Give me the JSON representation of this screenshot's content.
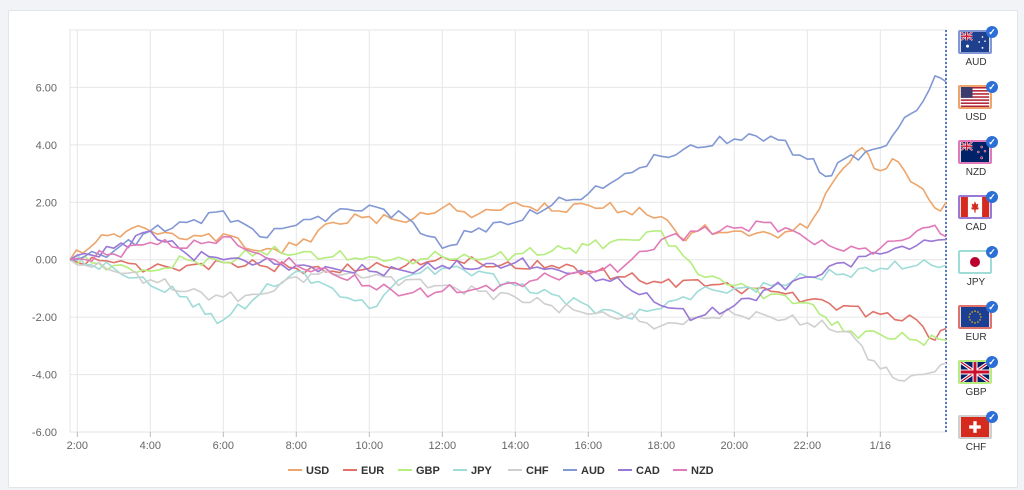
{
  "chart_data": {
    "type": "line",
    "ylim": [
      -6,
      8
    ],
    "y_ticks": [
      "6.00",
      "4.00",
      "2.00",
      "0.00",
      "-2.00",
      "-4.00",
      "-6.00"
    ],
    "y_tick_values": [
      6,
      4,
      2,
      0,
      -2,
      -4,
      -6
    ],
    "x_ticks": [
      "2:00",
      "4:00",
      "6:00",
      "8:00",
      "10:00",
      "12:00",
      "14:00",
      "16:00",
      "18:00",
      "20:00",
      "22:00",
      "1/16"
    ],
    "x_tick_values": [
      2,
      4,
      6,
      8,
      10,
      12,
      14,
      16,
      18,
      20,
      22,
      24
    ],
    "xlim": [
      1.8,
      25.8
    ],
    "grid": true,
    "legend_position": "bottom-center",
    "series": [
      {
        "name": "USD",
        "color": "#eda56b",
        "x": [
          1.8,
          2.5,
          3,
          3.5,
          4,
          5,
          6,
          7,
          8,
          9,
          10,
          11,
          12,
          13,
          14,
          15,
          16,
          17,
          18,
          18.5,
          19,
          20,
          21,
          22,
          22.5,
          23,
          23.5,
          24,
          24.5,
          25,
          25.5,
          25.8
        ],
        "y": [
          0,
          0.6,
          0.9,
          1.1,
          1.0,
          0.7,
          0.9,
          0.3,
          0.5,
          1.3,
          1.5,
          1.3,
          1.8,
          1.6,
          2.0,
          1.7,
          1.9,
          1.7,
          1.5,
          0.8,
          1.0,
          1.0,
          0.9,
          1.1,
          2.3,
          3.2,
          3.9,
          3.1,
          3.4,
          2.6,
          1.8,
          2.0
        ]
      },
      {
        "name": "EUR",
        "color": "#e07269",
        "x": [
          1.8,
          3,
          4,
          5,
          6,
          7,
          8,
          9,
          10,
          11,
          12,
          13,
          14,
          15,
          16,
          17,
          18,
          19,
          20,
          21,
          22,
          23,
          24,
          25,
          25.5,
          25.8
        ],
        "y": [
          0,
          -0.1,
          -0.3,
          -0.2,
          -0.1,
          -0.2,
          -0.3,
          -0.4,
          -0.3,
          -0.2,
          0.1,
          -0.1,
          -0.3,
          -0.2,
          -0.4,
          -0.6,
          -0.8,
          -0.7,
          -1.0,
          -1.1,
          -1.4,
          -1.6,
          -1.9,
          -2.1,
          -2.8,
          -2.4
        ]
      },
      {
        "name": "GBP",
        "color": "#b5ed7e",
        "x": [
          1.8,
          3,
          4,
          5,
          6,
          7,
          8,
          9,
          10,
          11,
          12,
          13,
          14,
          15,
          15.5,
          16,
          17,
          18,
          19,
          20,
          21,
          22,
          22.5,
          23,
          24,
          25,
          25.8
        ],
        "y": [
          0,
          -0.2,
          -0.4,
          0.0,
          -0.1,
          0.3,
          0.2,
          0.1,
          0.1,
          0.0,
          0.1,
          0.0,
          0.2,
          0.3,
          0.4,
          0.5,
          0.7,
          1.0,
          -0.5,
          -0.9,
          -1.2,
          -1.5,
          -2.0,
          -2.5,
          -2.6,
          -2.8,
          -2.8
        ]
      },
      {
        "name": "JPY",
        "color": "#9fdcd8",
        "x": [
          1.8,
          3,
          4,
          5,
          5.5,
          6,
          7,
          8,
          9,
          10,
          11,
          12,
          13,
          14,
          15,
          16,
          17,
          18,
          19,
          20,
          21,
          22,
          23,
          24,
          25,
          25.8
        ],
        "y": [
          0,
          -0.3,
          -0.9,
          -1.3,
          -1.9,
          -2.1,
          -1.2,
          -0.4,
          -1.0,
          -1.7,
          -0.6,
          -0.3,
          -0.4,
          -0.9,
          -1.2,
          -1.6,
          -2.0,
          -1.7,
          -1.1,
          -1.0,
          -0.9,
          -0.6,
          -0.5,
          -0.3,
          -0.2,
          -0.2
        ]
      },
      {
        "name": "CHF",
        "color": "#cfcfcf",
        "x": [
          1.8,
          3,
          4,
          5,
          6,
          7,
          8,
          9,
          10,
          11,
          12,
          13,
          14,
          15,
          16,
          17,
          18,
          19,
          20,
          21,
          22,
          23,
          23.5,
          24,
          24.5,
          25,
          25.5,
          25.8
        ],
        "y": [
          0,
          -0.4,
          -0.7,
          -1.1,
          -1.3,
          -1.2,
          -0.6,
          -0.5,
          -0.6,
          -0.7,
          -0.9,
          -1.1,
          -1.3,
          -1.6,
          -1.9,
          -2.0,
          -2.3,
          -2.0,
          -1.9,
          -2.0,
          -2.2,
          -2.5,
          -3.0,
          -3.8,
          -4.2,
          -4.0,
          -3.9,
          -3.6
        ]
      },
      {
        "name": "AUD",
        "color": "#8298d4",
        "x": [
          1.8,
          3,
          4,
          5,
          6,
          7,
          8,
          9,
          10,
          11,
          12,
          13,
          14,
          15,
          16,
          17,
          18,
          19,
          20,
          21,
          22,
          22.5,
          23,
          24,
          24.5,
          25,
          25.5,
          25.8
        ],
        "y": [
          0,
          0.3,
          1.0,
          1.3,
          1.7,
          0.8,
          1.2,
          1.6,
          1.9,
          1.5,
          0.4,
          1.1,
          1.3,
          1.9,
          2.3,
          3.0,
          3.6,
          3.9,
          4.2,
          4.3,
          3.5,
          2.9,
          3.5,
          3.9,
          4.6,
          5.2,
          6.4,
          6.2
        ]
      },
      {
        "name": "CAD",
        "color": "#9a78d6",
        "x": [
          1.8,
          3,
          4,
          5,
          6,
          7,
          8,
          9,
          10,
          11,
          12,
          13,
          14,
          15,
          16,
          17,
          18,
          19,
          20,
          21,
          22,
          23,
          24,
          25,
          25.8
        ],
        "y": [
          0,
          0.4,
          1.0,
          0.2,
          0.0,
          -0.1,
          -0.2,
          -0.3,
          -0.4,
          -0.4,
          -0.2,
          -0.3,
          -0.1,
          -0.3,
          -0.5,
          -0.9,
          -1.6,
          -2.0,
          -1.6,
          -1.0,
          -0.6,
          -0.1,
          0.2,
          0.5,
          0.7
        ]
      },
      {
        "name": "NZD",
        "color": "#e07ab8",
        "x": [
          1.8,
          3,
          4,
          5,
          6,
          7,
          8,
          9,
          10,
          11,
          12,
          13,
          14,
          15,
          16,
          17,
          18,
          19,
          20,
          21,
          22,
          23,
          24,
          25,
          25.5,
          25.8
        ],
        "y": [
          0,
          0.2,
          0.6,
          0.4,
          0.8,
          0.2,
          -0.2,
          -0.5,
          -0.9,
          -1.2,
          -1.1,
          -1.0,
          -0.8,
          -0.6,
          -0.5,
          -0.2,
          0.7,
          1.0,
          1.1,
          1.3,
          0.7,
          0.3,
          0.4,
          1.0,
          1.2,
          0.8
        ]
      }
    ]
  },
  "currency_panel": {
    "items": [
      {
        "code": "AUD",
        "flag": "australia-flag-icon",
        "border": "#8298d4"
      },
      {
        "code": "USD",
        "flag": "usa-flag-icon",
        "border": "#eda56b"
      },
      {
        "code": "NZD",
        "flag": "new-zealand-flag-icon",
        "border": "#e07ab8"
      },
      {
        "code": "CAD",
        "flag": "canada-flag-icon",
        "border": "#9a78d6"
      },
      {
        "code": "JPY",
        "flag": "japan-flag-icon",
        "border": "#9fdcd8"
      },
      {
        "code": "EUR",
        "flag": "eu-flag-icon",
        "border": "#e07269"
      },
      {
        "code": "GBP",
        "flag": "uk-flag-icon",
        "border": "#b5ed7e"
      },
      {
        "code": "CHF",
        "flag": "switzerland-flag-icon",
        "border": "#cfcfcf"
      }
    ]
  }
}
